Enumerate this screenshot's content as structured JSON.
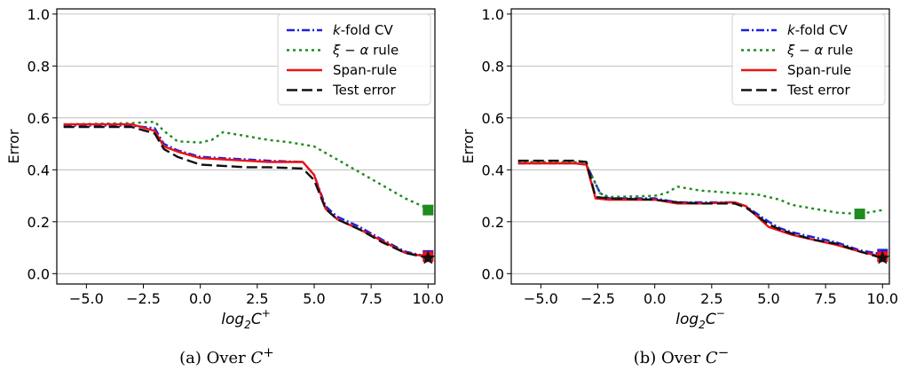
{
  "chart_data": [
    {
      "type": "line",
      "caption": {
        "prefix": "(a) Over ",
        "symbol": "C",
        "sup": "+"
      },
      "xlabel": {
        "base": "log",
        "sub": "2",
        "var": "C",
        "sup": "+"
      },
      "ylabel": "Error",
      "xlim": [
        -6.3,
        10.3
      ],
      "ylim": [
        -0.04,
        1.02
      ],
      "xticks": [
        -5.0,
        -2.5,
        0.0,
        2.5,
        5.0,
        7.5,
        10.0
      ],
      "yticks": [
        0.0,
        0.2,
        0.4,
        0.6,
        0.8,
        1.0
      ],
      "grid": "horizontal",
      "legend": "top-right",
      "series": [
        {
          "name": "k-fold CV",
          "name_italic": "k",
          "name_rest": "-fold CV",
          "color": "#1f1fdf",
          "style": "dashdot",
          "x": [
            -6,
            -3,
            -2,
            -1.6,
            -1,
            0,
            1,
            2,
            3,
            4.5,
            5,
            5.5,
            6,
            7,
            8,
            9,
            10
          ],
          "y": [
            0.57,
            0.57,
            0.56,
            0.5,
            0.475,
            0.45,
            0.445,
            0.44,
            0.435,
            0.43,
            0.38,
            0.26,
            0.22,
            0.18,
            0.13,
            0.085,
            0.065
          ]
        },
        {
          "name": "ξ − α rule",
          "name_italic": "ξ − α",
          "name_rest": " rule",
          "color": "#1e8c1e",
          "style": "dotted",
          "x": [
            -6,
            -3,
            -2,
            -1.6,
            -1,
            0,
            0.5,
            1,
            2,
            3,
            4,
            5,
            6,
            7,
            8,
            9,
            10
          ],
          "y": [
            0.575,
            0.58,
            0.585,
            0.55,
            0.51,
            0.505,
            0.515,
            0.545,
            0.53,
            0.515,
            0.505,
            0.49,
            0.44,
            0.39,
            0.34,
            0.29,
            0.25
          ]
        },
        {
          "name": "Span-rule",
          "name_italic": "",
          "name_rest": "Span-rule",
          "color": "#ee1111",
          "style": "solid",
          "x": [
            -6,
            -3,
            -2,
            -1.6,
            -1,
            0,
            1,
            2,
            3,
            4.5,
            5,
            5.5,
            6,
            7,
            8,
            9,
            10
          ],
          "y": [
            0.575,
            0.575,
            0.55,
            0.49,
            0.47,
            0.445,
            0.44,
            0.435,
            0.43,
            0.43,
            0.38,
            0.25,
            0.21,
            0.17,
            0.125,
            0.08,
            0.065
          ]
        },
        {
          "name": "Test error",
          "name_italic": "",
          "name_rest": "Test error",
          "color": "#111111",
          "style": "dashed",
          "x": [
            -6,
            -3,
            -2,
            -1.6,
            -1,
            0,
            1,
            2,
            3,
            4.5,
            5,
            5.5,
            6,
            7,
            8,
            9,
            10
          ],
          "y": [
            0.565,
            0.565,
            0.54,
            0.48,
            0.45,
            0.42,
            0.415,
            0.41,
            0.41,
            0.405,
            0.36,
            0.25,
            0.21,
            0.17,
            0.12,
            0.08,
            0.06
          ]
        }
      ],
      "markers": [
        {
          "series": "ξ − α rule",
          "shape": "square",
          "x": 10,
          "y": 0.245,
          "color": "#1e8c1e"
        },
        {
          "series": "k-fold CV",
          "shape": "square",
          "x": 10,
          "y": 0.07,
          "color": "#1f1fdf"
        },
        {
          "series": "Span-rule",
          "shape": "square",
          "x": 10,
          "y": 0.065,
          "color": "#ee1111"
        },
        {
          "series": "Test error",
          "shape": "star",
          "x": 10,
          "y": 0.06,
          "color": "#111111"
        }
      ]
    },
    {
      "type": "line",
      "caption": {
        "prefix": "(b) Over ",
        "symbol": "C",
        "sup": "−"
      },
      "xlabel": {
        "base": "log",
        "sub": "2",
        "var": "C",
        "sup": "−"
      },
      "ylabel": "Error",
      "xlim": [
        -6.3,
        10.3
      ],
      "ylim": [
        -0.04,
        1.02
      ],
      "xticks": [
        -5.0,
        -2.5,
        0.0,
        2.5,
        5.0,
        7.5,
        10.0
      ],
      "yticks": [
        0.0,
        0.2,
        0.4,
        0.6,
        0.8,
        1.0
      ],
      "grid": "horizontal",
      "legend": "top-right",
      "series": [
        {
          "name": "k-fold CV",
          "name_italic": "k",
          "name_rest": "-fold CV",
          "color": "#1f1fdf",
          "style": "dashdot",
          "x": [
            -6,
            -3.5,
            -3,
            -2.4,
            -2,
            0,
            1,
            2,
            3.5,
            4,
            5,
            5.5,
            6,
            7,
            8,
            9,
            10
          ],
          "y": [
            0.425,
            0.425,
            0.42,
            0.31,
            0.29,
            0.29,
            0.275,
            0.275,
            0.275,
            0.26,
            0.2,
            0.175,
            0.16,
            0.14,
            0.12,
            0.09,
            0.075
          ]
        },
        {
          "name": "ξ − α rule",
          "name_italic": "ξ − α",
          "name_rest": " rule",
          "color": "#1e8c1e",
          "style": "dotted",
          "x": [
            -6,
            -3.5,
            -3,
            -2.4,
            -2,
            0,
            0.5,
            1,
            2,
            3.5,
            4.5,
            5.5,
            6,
            7,
            8,
            9,
            10
          ],
          "y": [
            0.43,
            0.43,
            0.42,
            0.31,
            0.295,
            0.3,
            0.31,
            0.335,
            0.32,
            0.31,
            0.305,
            0.285,
            0.265,
            0.25,
            0.235,
            0.23,
            0.245
          ]
        },
        {
          "name": "Span-rule",
          "name_italic": "",
          "name_rest": "Span-rule",
          "color": "#ee1111",
          "style": "solid",
          "x": [
            -6,
            -3.5,
            -3,
            -2.6,
            -2,
            0,
            1,
            2,
            3.5,
            4,
            5,
            5.5,
            6,
            7,
            8,
            9,
            10
          ],
          "y": [
            0.425,
            0.425,
            0.42,
            0.29,
            0.285,
            0.285,
            0.27,
            0.27,
            0.275,
            0.26,
            0.18,
            0.165,
            0.15,
            0.13,
            0.11,
            0.085,
            0.065
          ]
        },
        {
          "name": "Test error",
          "name_italic": "",
          "name_rest": "Test error",
          "color": "#111111",
          "style": "dashed",
          "x": [
            -6,
            -3.5,
            -3,
            -2.6,
            -2,
            0,
            1,
            2,
            3.5,
            4,
            5,
            5.5,
            6,
            7,
            8,
            9,
            10
          ],
          "y": [
            0.435,
            0.435,
            0.43,
            0.295,
            0.29,
            0.285,
            0.275,
            0.27,
            0.27,
            0.255,
            0.19,
            0.17,
            0.155,
            0.13,
            0.115,
            0.085,
            0.06
          ]
        }
      ],
      "markers": [
        {
          "series": "ξ − α rule",
          "shape": "square",
          "x": 9,
          "y": 0.23,
          "color": "#1e8c1e"
        },
        {
          "series": "k-fold CV",
          "shape": "square",
          "x": 10,
          "y": 0.075,
          "color": "#1f1fdf"
        },
        {
          "series": "Span-rule",
          "shape": "square",
          "x": 10,
          "y": 0.065,
          "color": "#ee1111"
        },
        {
          "series": "Test error",
          "shape": "star",
          "x": 10,
          "y": 0.06,
          "color": "#111111"
        }
      ]
    }
  ]
}
